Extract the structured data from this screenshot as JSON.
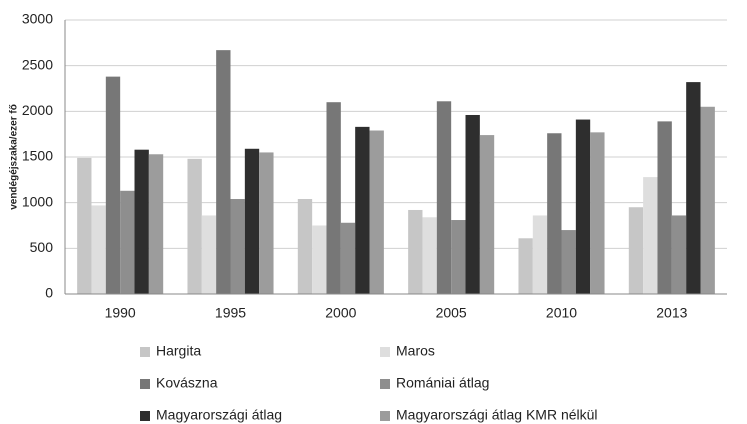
{
  "chart_data": {
    "type": "bar",
    "y_label": "vendégéjszaka/ezer fő",
    "categories": [
      "1990",
      "1995",
      "2000",
      "2005",
      "2010",
      "2013"
    ],
    "series": [
      {
        "name": "Hargita",
        "color": "#c6c6c6",
        "values": [
          1490,
          1480,
          1040,
          920,
          610,
          950
        ]
      },
      {
        "name": "Maros",
        "color": "#dedede",
        "values": [
          970,
          860,
          750,
          840,
          860,
          1280
        ]
      },
      {
        "name": "Kovászna",
        "color": "#777777",
        "values": [
          2380,
          2670,
          2100,
          2110,
          1760,
          1890
        ]
      },
      {
        "name": "Romániai átlag",
        "color": "#8e8e8e",
        "values": [
          1130,
          1040,
          780,
          810,
          700,
          860
        ]
      },
      {
        "name": "Magyarországi átlag",
        "color": "#2e2e2e",
        "values": [
          1580,
          1590,
          1830,
          1960,
          1910,
          2320
        ]
      },
      {
        "name": "Magyarországi átlag KMR nélkül",
        "color": "#9c9c9c",
        "values": [
          1530,
          1550,
          1790,
          1740,
          1770,
          2050
        ]
      }
    ],
    "ylim": [
      0,
      3000
    ],
    "yticks": [
      0,
      500,
      1000,
      1500,
      2000,
      2500,
      3000
    ],
    "grid": true,
    "legend": "bottom"
  }
}
